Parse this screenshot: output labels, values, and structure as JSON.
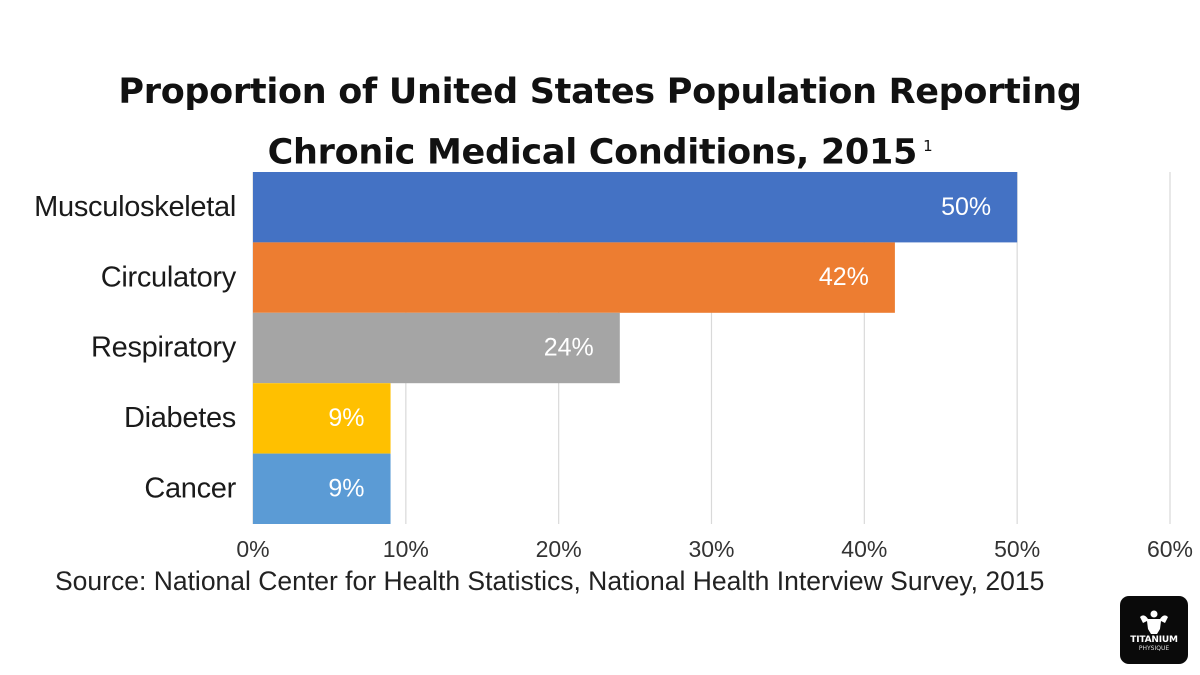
{
  "chart_data": {
    "type": "bar",
    "orientation": "horizontal",
    "title_line1": "Proportion of United States Population Reporting",
    "title_line2": "Chronic Medical Conditions, 2015",
    "footnote_marker": "1",
    "categories": [
      "Musculoskeletal",
      "Circulatory",
      "Respiratory",
      "Diabetes",
      "Cancer"
    ],
    "values": [
      50,
      42,
      24,
      9,
      9
    ],
    "data_labels": [
      "50%",
      "42%",
      "24%",
      "9%",
      "9%"
    ],
    "colors": [
      "#4472c4",
      "#ed7d31",
      "#a5a5a5",
      "#ffc000",
      "#5b9bd5"
    ],
    "x_ticks": [
      0,
      10,
      20,
      30,
      40,
      50,
      60
    ],
    "x_tick_labels": [
      "0%",
      "10%",
      "20%",
      "30%",
      "40%",
      "50%",
      "60%"
    ],
    "xlim": [
      0,
      60
    ],
    "grid": "vertical",
    "legend": "none",
    "source": "Source: National Center for Health Statistics, National Health Interview Survey, 2015"
  },
  "logo": {
    "text": "TITANIUM",
    "subtext": "PHYSIQUE"
  }
}
